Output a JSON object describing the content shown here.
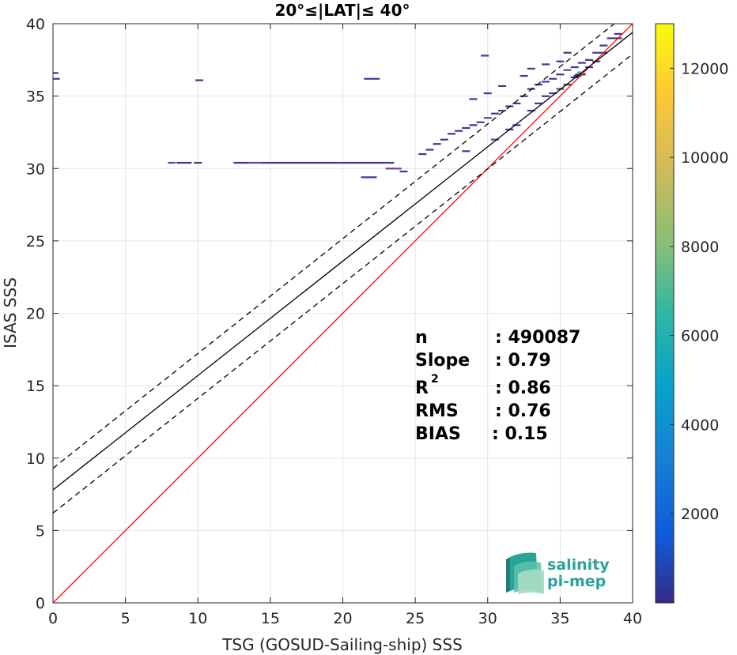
{
  "chart_data": {
    "type": "heatmap",
    "title": "20°≤|LAT|≤ 40°",
    "xlabel": "TSG (GOSUD-Sailing-ship) SSS",
    "ylabel": "ISAS SSS",
    "xlim": [
      0,
      40
    ],
    "ylim": [
      0,
      40
    ],
    "xticks": [
      0,
      5,
      10,
      15,
      20,
      25,
      30,
      35,
      40
    ],
    "yticks": [
      0,
      5,
      10,
      15,
      20,
      25,
      30,
      35,
      40
    ],
    "grid": true,
    "colorbar": {
      "range": [
        0,
        13000
      ],
      "ticks": [
        2000,
        4000,
        6000,
        8000,
        10000,
        12000
      ],
      "colormap": "parula"
    },
    "lines": [
      {
        "kind": "identity",
        "color": "#ff0000",
        "style": "solid",
        "points": [
          [
            0,
            0
          ],
          [
            40,
            40
          ]
        ]
      },
      {
        "kind": "regression",
        "color": "#000000",
        "style": "solid",
        "points": [
          [
            0,
            7.8
          ],
          [
            40,
            39.4
          ]
        ]
      },
      {
        "kind": "regression-upper",
        "color": "#000000",
        "style": "dashed",
        "points": [
          [
            0,
            9.3
          ],
          [
            40,
            41.0
          ]
        ]
      },
      {
        "kind": "regression-lower",
        "color": "#000000",
        "style": "dashed",
        "points": [
          [
            0,
            6.2
          ],
          [
            40,
            37.9
          ]
        ]
      }
    ],
    "stats": [
      {
        "label": "n",
        "value": ": 490087"
      },
      {
        "label": "Slope",
        "value": ": 0.79"
      },
      {
        "label": "R",
        "value": ": 0.86"
      },
      {
        "label": "RMS",
        "value": ": 0.76"
      },
      {
        "label": "BIAS",
        "value": ": 0.15"
      }
    ],
    "stat_superscript": "2",
    "density_colors": {
      "low": "#3a3a96",
      "mid": "#6a3fa0",
      "high": "#3fbf8f"
    },
    "density_points": [
      [
        8.2,
        30.4
      ],
      [
        8.8,
        30.4
      ],
      [
        9.3,
        30.4
      ],
      [
        10.0,
        30.4
      ],
      [
        10.1,
        36.1
      ],
      [
        22.0,
        36.2
      ],
      [
        29.8,
        37.8
      ],
      [
        35.5,
        38.0
      ],
      [
        0.1,
        36.6
      ],
      [
        0.2,
        36.2
      ],
      [
        13,
        30.4
      ],
      [
        14,
        30.4
      ],
      [
        15,
        30.4
      ],
      [
        16,
        30.4
      ],
      [
        17,
        30.4
      ],
      [
        18,
        30.4
      ],
      [
        19,
        30.4
      ],
      [
        20,
        30.4
      ],
      [
        21,
        30.4
      ],
      [
        22,
        30.4
      ],
      [
        23,
        30.4
      ],
      [
        21.8,
        29.4
      ],
      [
        23.5,
        30.0
      ],
      [
        24.2,
        29.8
      ],
      [
        25.5,
        31.0
      ],
      [
        26,
        31.3
      ],
      [
        26.5,
        31.7
      ],
      [
        27,
        32.0
      ],
      [
        27.5,
        32.4
      ],
      [
        28,
        32.6
      ],
      [
        28.5,
        32.8
      ],
      [
        29,
        33.0
      ],
      [
        29.5,
        33.2
      ],
      [
        30,
        33.5
      ],
      [
        30.5,
        33.8
      ],
      [
        31,
        34.0
      ],
      [
        31.5,
        34.3
      ],
      [
        32,
        34.5
      ],
      [
        32.5,
        35.0
      ],
      [
        33,
        35.5
      ],
      [
        33.5,
        35.8
      ],
      [
        34,
        36.0
      ],
      [
        34.5,
        36.2
      ],
      [
        35,
        36.5
      ],
      [
        35.5,
        36.8
      ],
      [
        36,
        37.0
      ],
      [
        36.5,
        37.3
      ],
      [
        37,
        37.5
      ],
      [
        37.5,
        38.0
      ],
      [
        38,
        38.5
      ],
      [
        38.5,
        39.0
      ],
      [
        39,
        39.3
      ],
      [
        32,
        33.0
      ],
      [
        33,
        34.0
      ],
      [
        34,
        35.0
      ],
      [
        35,
        35.5
      ],
      [
        36,
        36.3
      ],
      [
        37,
        37.0
      ],
      [
        38,
        38.0
      ],
      [
        39,
        39.0
      ],
      [
        33.5,
        34.5
      ],
      [
        34.5,
        35.2
      ],
      [
        35.5,
        35.8
      ],
      [
        36.5,
        36.5
      ],
      [
        37.5,
        37.4
      ],
      [
        28.5,
        31.2
      ],
      [
        30.5,
        32.0
      ],
      [
        31.5,
        32.7
      ],
      [
        29,
        34.8
      ],
      [
        30,
        35.2
      ],
      [
        31,
        35.7
      ],
      [
        32.5,
        36.4
      ],
      [
        33,
        36.9
      ],
      [
        34,
        37.2
      ],
      [
        35,
        37.4
      ],
      [
        36.2,
        36.4
      ],
      [
        36.3,
        36.5
      ]
    ]
  },
  "logo": {
    "line1": "salinity",
    "line2": "pi-mep"
  }
}
